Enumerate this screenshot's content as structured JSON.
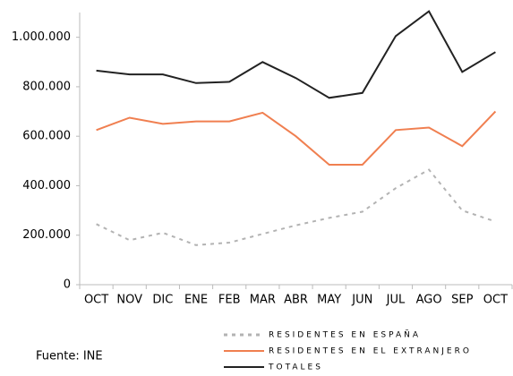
{
  "chart_data": {
    "type": "line",
    "categories": [
      "OCT",
      "NOV",
      "DIC",
      "ENE",
      "FEB",
      "MAR",
      "ABR",
      "MAY",
      "JUN",
      "JUL",
      "AGO",
      "SEP",
      "OCT"
    ],
    "series": [
      {
        "name": "RESIDENTES EN ESPAÑA",
        "color": "#b3b3b3",
        "dash": true,
        "values": [
          245000,
          180000,
          210000,
          160000,
          170000,
          205000,
          240000,
          270000,
          295000,
          390000,
          465000,
          300000,
          255000
        ]
      },
      {
        "name": "RESIDENTES EN EL EXTRANJERO",
        "color": "#f07f50",
        "dash": false,
        "values": [
          625000,
          675000,
          650000,
          660000,
          660000,
          695000,
          600000,
          485000,
          485000,
          625000,
          635000,
          560000,
          700000
        ]
      },
      {
        "name": "TOTALES",
        "color": "#222222",
        "dash": false,
        "values": [
          865000,
          850000,
          850000,
          815000,
          820000,
          900000,
          835000,
          755000,
          775000,
          1005000,
          1105000,
          860000,
          940000
        ]
      }
    ],
    "ylim": [
      0,
      1100000
    ],
    "yticks": [
      0,
      {
        "value": 200000,
        "label": "200.000"
      },
      {
        "value": 400000,
        "label": "400.000"
      },
      {
        "value": 600000,
        "label": "600.000"
      },
      {
        "value": 800000,
        "label": "800.000"
      },
      {
        "value": 1000000,
        "label": "1.000.000"
      }
    ],
    "source": "Fuente: INE",
    "legend": "bottom"
  }
}
